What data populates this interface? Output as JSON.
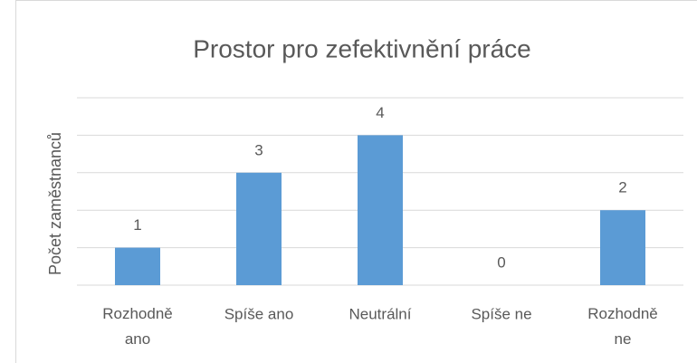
{
  "chart_data": {
    "type": "bar",
    "title": "Prostor pro zefektivnění práce",
    "ylabel": "Počet zaměstnanců",
    "categories": [
      "Rozhodně ano",
      "Spíše ano",
      "Neutrální",
      "Spíše ne",
      "Rozhodně ne"
    ],
    "values": [
      1,
      3,
      4,
      0,
      2
    ],
    "color": "#5b9bd5",
    "ylim": [
      0,
      5
    ],
    "yticks": [
      0,
      1,
      2,
      3,
      4,
      5
    ],
    "grid": true
  }
}
